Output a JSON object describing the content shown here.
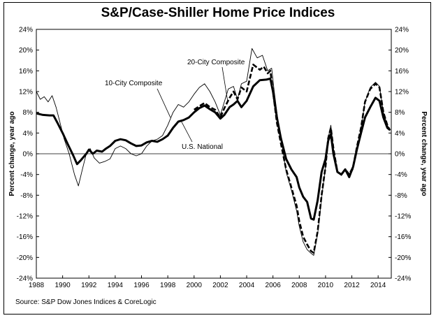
{
  "chart_data": {
    "type": "line",
    "title": "S&P/Case-Shiller Home Price Indices",
    "ylabel_left": "Percent change, year ago",
    "ylabel_right": "Percent change, year ago",
    "source": "Source: S&P Dow Jones Indices & CoreLogic",
    "xlim": [
      1988,
      2015
    ],
    "ylim": [
      -24,
      24
    ],
    "x_ticks": [
      1988,
      1990,
      1992,
      1994,
      1996,
      1998,
      2000,
      2002,
      2004,
      2006,
      2008,
      2010,
      2012,
      2014
    ],
    "x_tick_labels": [
      "1988",
      "1990",
      "1992",
      "1994",
      "1996",
      "1998",
      "2000",
      "2002",
      "2004",
      "2006",
      "2008",
      "2010",
      "2012",
      "2014"
    ],
    "y_ticks": [
      -24,
      -20,
      -16,
      -12,
      -8,
      -4,
      0,
      4,
      8,
      12,
      16,
      20,
      24
    ],
    "y_tick_labels": [
      "-24%",
      "-20%",
      "-16%",
      "-12%",
      "-8%",
      "-4%",
      "0%",
      "4%",
      "8%",
      "12%",
      "16%",
      "20%",
      "24%"
    ],
    "grid": false,
    "legend": "inline labels",
    "series": [
      {
        "name": "U.S. National",
        "style": "thick-solid",
        "color": "#000000",
        "points": [
          [
            1988.0,
            7.8
          ],
          [
            1988.5,
            7.5
          ],
          [
            1989.0,
            7.4
          ],
          [
            1989.3,
            7.4
          ],
          [
            1989.6,
            6.0
          ],
          [
            1990.0,
            4.0
          ],
          [
            1990.4,
            1.8
          ],
          [
            1990.8,
            -0.3
          ],
          [
            1991.1,
            -2.0
          ],
          [
            1991.4,
            -1.2
          ],
          [
            1991.8,
            0.0
          ],
          [
            1992.0,
            0.8
          ],
          [
            1992.3,
            0.0
          ],
          [
            1992.6,
            0.6
          ],
          [
            1993.0,
            0.4
          ],
          [
            1993.3,
            1.0
          ],
          [
            1993.6,
            1.5
          ],
          [
            1994.0,
            2.5
          ],
          [
            1994.4,
            2.8
          ],
          [
            1994.8,
            2.6
          ],
          [
            1995.2,
            2.0
          ],
          [
            1995.6,
            1.5
          ],
          [
            1996.0,
            1.6
          ],
          [
            1996.4,
            2.2
          ],
          [
            1996.8,
            2.5
          ],
          [
            1997.2,
            2.3
          ],
          [
            1997.6,
            2.8
          ],
          [
            1998.0,
            3.5
          ],
          [
            1998.4,
            5.0
          ],
          [
            1998.8,
            6.2
          ],
          [
            1999.2,
            6.5
          ],
          [
            1999.6,
            7.0
          ],
          [
            2000.0,
            8.0
          ],
          [
            2000.4,
            8.8
          ],
          [
            2000.8,
            9.3
          ],
          [
            2001.2,
            8.6
          ],
          [
            2001.6,
            8.0
          ],
          [
            2002.0,
            6.8
          ],
          [
            2002.3,
            7.5
          ],
          [
            2002.7,
            9.0
          ],
          [
            2003.0,
            9.5
          ],
          [
            2003.3,
            10.2
          ],
          [
            2003.6,
            9.0
          ],
          [
            2004.0,
            10.2
          ],
          [
            2004.5,
            13.0
          ],
          [
            2005.0,
            14.2
          ],
          [
            2005.5,
            14.3
          ],
          [
            2005.8,
            14.5
          ],
          [
            2006.0,
            12.0
          ],
          [
            2006.3,
            7.0
          ],
          [
            2006.6,
            3.0
          ],
          [
            2007.0,
            -1.0
          ],
          [
            2007.4,
            -3.0
          ],
          [
            2007.8,
            -4.5
          ],
          [
            2008.0,
            -6.5
          ],
          [
            2008.3,
            -8.3
          ],
          [
            2008.6,
            -9.3
          ],
          [
            2008.9,
            -12.5
          ],
          [
            2009.1,
            -12.7
          ],
          [
            2009.4,
            -9.0
          ],
          [
            2009.7,
            -3.5
          ],
          [
            2010.0,
            -1.0
          ],
          [
            2010.2,
            2.5
          ],
          [
            2010.4,
            3.8
          ],
          [
            2010.6,
            0.0
          ],
          [
            2010.9,
            -3.5
          ],
          [
            2011.2,
            -4.0
          ],
          [
            2011.5,
            -3.0
          ],
          [
            2011.8,
            -4.5
          ],
          [
            2012.1,
            -2.5
          ],
          [
            2012.4,
            1.0
          ],
          [
            2012.7,
            4.0
          ],
          [
            2013.0,
            7.0
          ],
          [
            2013.4,
            9.0
          ],
          [
            2013.8,
            10.8
          ],
          [
            2014.1,
            10.2
          ],
          [
            2014.4,
            7.0
          ],
          [
            2014.7,
            5.0
          ],
          [
            2014.9,
            4.6
          ]
        ]
      },
      {
        "name": "20-City Composite",
        "style": "dashed",
        "color": "#000000",
        "points": [
          [
            2000.0,
            8.5
          ],
          [
            2000.4,
            9.2
          ],
          [
            2000.8,
            9.8
          ],
          [
            2001.2,
            9.0
          ],
          [
            2001.6,
            8.5
          ],
          [
            2002.0,
            7.0
          ],
          [
            2002.3,
            8.8
          ],
          [
            2002.7,
            10.8
          ],
          [
            2003.0,
            12.0
          ],
          [
            2003.3,
            10.5
          ],
          [
            2003.6,
            12.8
          ],
          [
            2004.0,
            12.0
          ],
          [
            2004.5,
            17.2
          ],
          [
            2005.0,
            16.2
          ],
          [
            2005.3,
            16.8
          ],
          [
            2005.6,
            15.5
          ],
          [
            2005.8,
            16.0
          ],
          [
            2006.0,
            12.0
          ],
          [
            2006.3,
            6.0
          ],
          [
            2006.6,
            2.0
          ],
          [
            2007.0,
            -3.0
          ],
          [
            2007.4,
            -6.5
          ],
          [
            2007.8,
            -10.0
          ],
          [
            2008.0,
            -13.0
          ],
          [
            2008.3,
            -16.0
          ],
          [
            2008.6,
            -17.5
          ],
          [
            2008.9,
            -18.8
          ],
          [
            2009.1,
            -19.1
          ],
          [
            2009.4,
            -15.0
          ],
          [
            2009.7,
            -8.0
          ],
          [
            2010.0,
            -2.5
          ],
          [
            2010.2,
            3.0
          ],
          [
            2010.4,
            5.0
          ],
          [
            2010.6,
            1.0
          ],
          [
            2010.9,
            -3.5
          ],
          [
            2011.2,
            -4.0
          ],
          [
            2011.5,
            -3.0
          ],
          [
            2011.8,
            -4.0
          ],
          [
            2012.1,
            -2.5
          ],
          [
            2012.4,
            1.5
          ],
          [
            2012.7,
            5.0
          ],
          [
            2013.0,
            10.0
          ],
          [
            2013.4,
            12.5
          ],
          [
            2013.8,
            13.5
          ],
          [
            2014.1,
            12.8
          ],
          [
            2014.4,
            8.0
          ],
          [
            2014.7,
            5.5
          ],
          [
            2014.9,
            4.5
          ]
        ]
      },
      {
        "name": "10-City Composite",
        "style": "thin-solid",
        "color": "#000000",
        "points": [
          [
            1988.0,
            12.0
          ],
          [
            1988.3,
            10.5
          ],
          [
            1988.6,
            11.0
          ],
          [
            1988.9,
            10.0
          ],
          [
            1989.2,
            11.2
          ],
          [
            1989.5,
            9.0
          ],
          [
            1989.8,
            6.0
          ],
          [
            1990.1,
            3.0
          ],
          [
            1990.5,
            0.0
          ],
          [
            1990.9,
            -4.0
          ],
          [
            1991.2,
            -6.2
          ],
          [
            1991.5,
            -3.0
          ],
          [
            1991.8,
            0.0
          ],
          [
            1992.1,
            1.0
          ],
          [
            1992.4,
            -0.8
          ],
          [
            1992.8,
            -1.8
          ],
          [
            1993.2,
            -1.5
          ],
          [
            1993.6,
            -1.0
          ],
          [
            1994.0,
            1.0
          ],
          [
            1994.4,
            1.5
          ],
          [
            1994.8,
            1.0
          ],
          [
            1995.2,
            0.0
          ],
          [
            1995.6,
            -0.4
          ],
          [
            1996.0,
            0.0
          ],
          [
            1996.4,
            1.5
          ],
          [
            1996.8,
            2.5
          ],
          [
            1997.2,
            2.8
          ],
          [
            1997.6,
            3.5
          ],
          [
            1998.0,
            5.5
          ],
          [
            1998.4,
            8.0
          ],
          [
            1998.8,
            9.5
          ],
          [
            1999.2,
            9.0
          ],
          [
            1999.6,
            10.0
          ],
          [
            2000.0,
            11.5
          ],
          [
            2000.4,
            12.8
          ],
          [
            2000.8,
            13.5
          ],
          [
            2001.2,
            12.0
          ],
          [
            2001.6,
            10.0
          ],
          [
            2002.0,
            7.5
          ],
          [
            2002.3,
            10.0
          ],
          [
            2002.6,
            12.5
          ],
          [
            2003.0,
            13.0
          ],
          [
            2003.3,
            10.5
          ],
          [
            2003.6,
            13.5
          ],
          [
            2004.0,
            14.0
          ],
          [
            2004.4,
            20.3
          ],
          [
            2004.8,
            18.5
          ],
          [
            2005.2,
            19.0
          ],
          [
            2005.6,
            16.0
          ],
          [
            2005.9,
            16.5
          ],
          [
            2006.1,
            12.0
          ],
          [
            2006.4,
            6.0
          ],
          [
            2006.7,
            1.5
          ],
          [
            2007.0,
            -3.5
          ],
          [
            2007.4,
            -7.0
          ],
          [
            2007.8,
            -11.0
          ],
          [
            2008.0,
            -14.0
          ],
          [
            2008.3,
            -17.0
          ],
          [
            2008.6,
            -18.5
          ],
          [
            2008.9,
            -19.2
          ],
          [
            2009.1,
            -19.6
          ],
          [
            2009.4,
            -15.5
          ],
          [
            2009.7,
            -8.5
          ],
          [
            2010.0,
            -2.5
          ],
          [
            2010.2,
            3.0
          ],
          [
            2010.4,
            5.5
          ],
          [
            2010.6,
            1.0
          ],
          [
            2010.9,
            -3.5
          ],
          [
            2011.2,
            -4.2
          ],
          [
            2011.5,
            -3.2
          ],
          [
            2011.8,
            -4.5
          ],
          [
            2012.1,
            -3.0
          ],
          [
            2012.4,
            1.0
          ],
          [
            2012.7,
            5.0
          ],
          [
            2013.0,
            10.0
          ],
          [
            2013.4,
            12.8
          ],
          [
            2013.8,
            13.8
          ],
          [
            2014.1,
            13.0
          ],
          [
            2014.4,
            8.0
          ],
          [
            2014.7,
            5.5
          ],
          [
            2014.9,
            4.5
          ]
        ]
      }
    ]
  }
}
